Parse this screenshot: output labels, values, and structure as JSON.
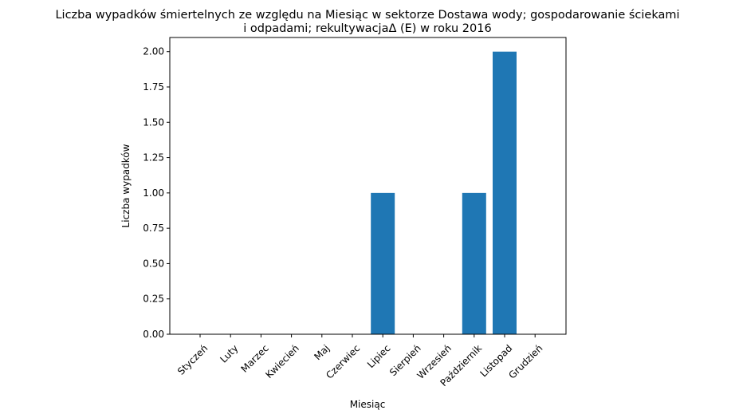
{
  "chart_data": {
    "type": "bar",
    "title": "Liczba wypadków śmiertelnych ze względu na Miesiąc w sektorze Dostawa wody; gospodarowanie ściekami i odpadami;  rekultywacjaΔ  (E) w roku 2016",
    "title_lines": [
      "Liczba wypadków śmiertelnych ze względu na Miesiąc w sektorze Dostawa wody; gospodarowanie ściekami",
      "i odpadami;  rekultywacjaΔ  (E) w roku 2016"
    ],
    "xlabel": "Miesiąc",
    "ylabel": "Liczba wypadków",
    "categories": [
      "Styczeń",
      "Luty",
      "Marzec",
      "Kwiecień",
      "Maj",
      "Czerwiec",
      "Lipiec",
      "Sierpień",
      "Wrzesień",
      "Październik",
      "Listopad",
      "Grudzień"
    ],
    "values": [
      0,
      0,
      0,
      0,
      0,
      0,
      1,
      0,
      0,
      1,
      2,
      0
    ],
    "ylim": [
      0,
      2.1
    ],
    "yticks": [
      "0.00",
      "0.25",
      "0.50",
      "0.75",
      "1.00",
      "1.25",
      "1.50",
      "1.75",
      "2.00"
    ],
    "bar_color": "#1f77b4",
    "grid": false
  }
}
